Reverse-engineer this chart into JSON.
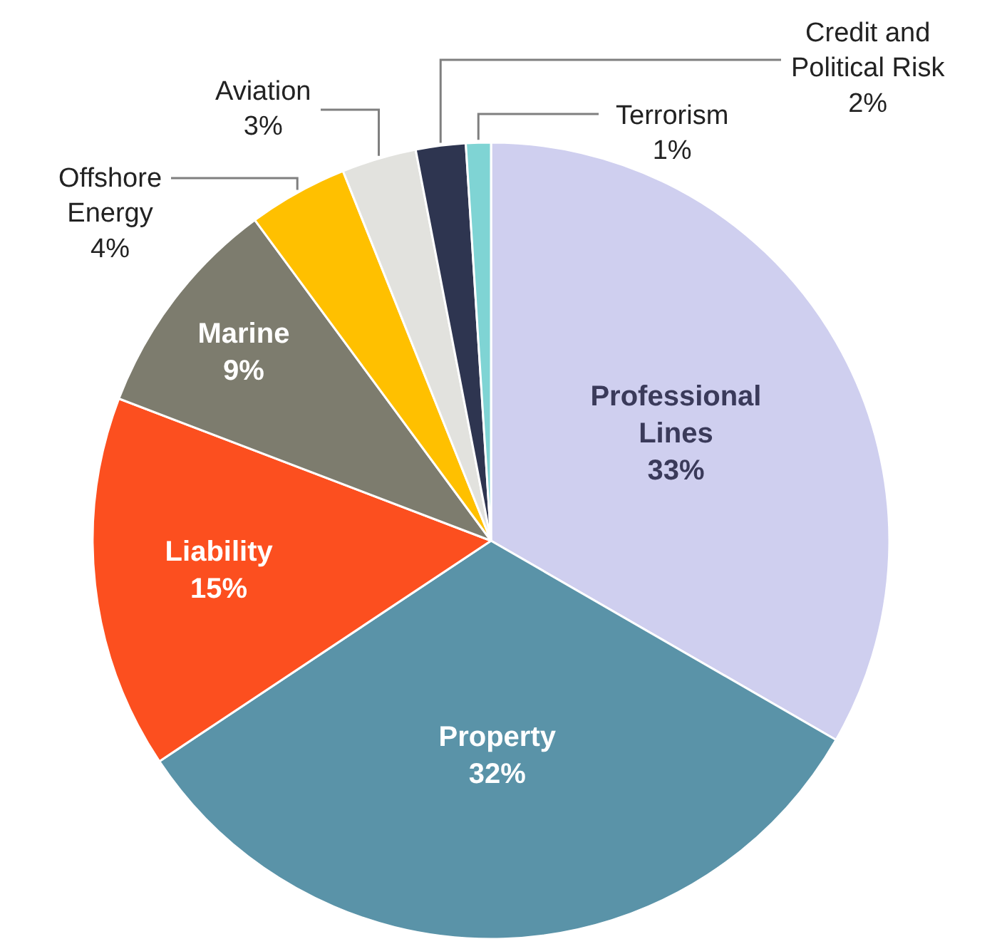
{
  "chart_data": {
    "type": "pie",
    "categories": [
      "Professional Lines",
      "Property",
      "Liability",
      "Marine",
      "Offshore Energy",
      "Aviation",
      "Credit and Political Risk",
      "Terrorism"
    ],
    "values": [
      33,
      32,
      15,
      9,
      4,
      3,
      2,
      1
    ],
    "value_labels": [
      "33%",
      "32%",
      "15%",
      "9%",
      "4%",
      "3%",
      "2%",
      "1%"
    ],
    "colors": [
      "#cfcfef",
      "#5a93a8",
      "#fc4f1f",
      "#7d7c6e",
      "#ffc000",
      "#e2e2de",
      "#2e3550",
      "#7fd4d4"
    ],
    "legend": false
  }
}
